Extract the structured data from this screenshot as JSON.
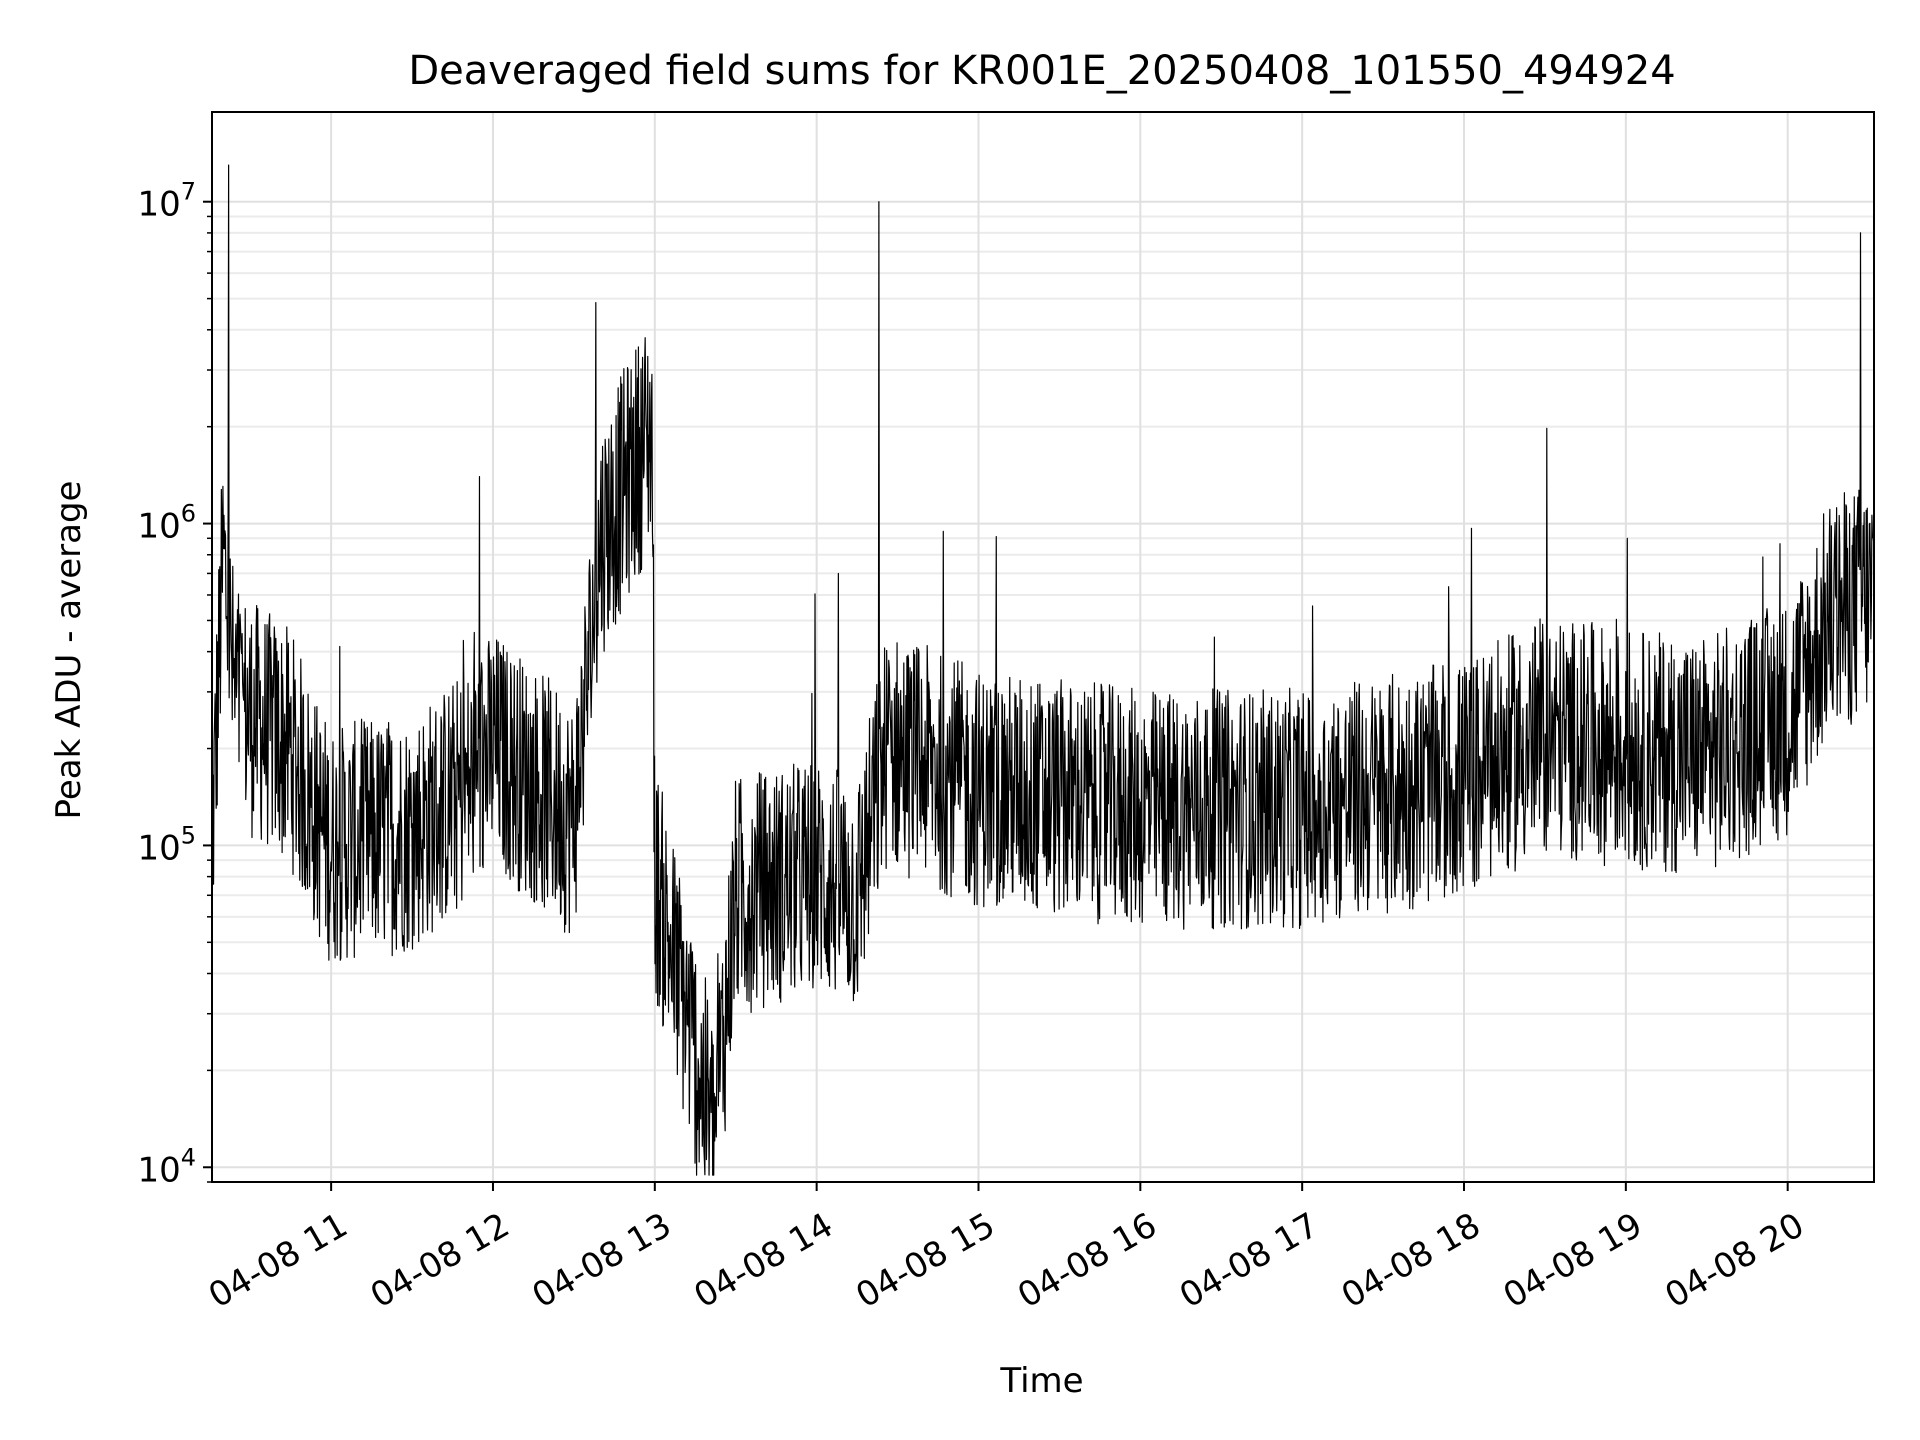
{
  "chart_data": {
    "type": "line",
    "title": "Deaveraged field sums for KR001E_20250408_101550_494924",
    "xlabel": "Time",
    "ylabel": "Peak ADU - average",
    "yscale": "log",
    "ylim": [
      9000,
      19000000
    ],
    "xlim": [
      "2025-04-08T10:15:50",
      "2025-04-08T20:32:00"
    ],
    "grid": true,
    "line_color": "#000000",
    "y_ticks": [
      {
        "value": 10000,
        "base": "10",
        "exp": "4"
      },
      {
        "value": 100000,
        "base": "10",
        "exp": "5"
      },
      {
        "value": 1000000,
        "base": "10",
        "exp": "6"
      },
      {
        "value": 10000000,
        "base": "10",
        "exp": "7"
      }
    ],
    "x_ticks": [
      {
        "value": "2025-04-08T11:00:00",
        "label": "04-08 11"
      },
      {
        "value": "2025-04-08T12:00:00",
        "label": "04-08 12"
      },
      {
        "value": "2025-04-08T13:00:00",
        "label": "04-08 13"
      },
      {
        "value": "2025-04-08T14:00:00",
        "label": "04-08 14"
      },
      {
        "value": "2025-04-08T15:00:00",
        "label": "04-08 15"
      },
      {
        "value": "2025-04-08T16:00:00",
        "label": "04-08 16"
      },
      {
        "value": "2025-04-08T17:00:00",
        "label": "04-08 17"
      },
      {
        "value": "2025-04-08T18:00:00",
        "label": "04-08 18"
      },
      {
        "value": "2025-04-08T19:00:00",
        "label": "04-08 19"
      },
      {
        "value": "2025-04-08T20:00:00",
        "label": "04-08 20"
      }
    ],
    "series": [
      {
        "sampling": "approximate envelope read from the plotted trace",
        "points": [
          {
            "x": "2025-04-08T10:15:50",
            "y": 100000
          },
          {
            "x": "2025-04-08T10:20:00",
            "y": 800000
          },
          {
            "x": "2025-04-08T10:22:00",
            "y": 13000000
          },
          {
            "x": "2025-04-08T10:24:00",
            "y": 300000
          },
          {
            "x": "2025-04-08T10:30:00",
            "y": 250000
          },
          {
            "x": "2025-04-08T10:45:00",
            "y": 200000
          },
          {
            "x": "2025-04-08T10:55:00",
            "y": 120000
          },
          {
            "x": "2025-04-08T11:00:00",
            "y": 100000
          },
          {
            "x": "2025-04-08T11:30:00",
            "y": 110000
          },
          {
            "x": "2025-04-08T11:50:00",
            "y": 150000
          },
          {
            "x": "2025-04-08T11:55:00",
            "y": 1400000
          },
          {
            "x": "2025-04-08T12:00:00",
            "y": 200000
          },
          {
            "x": "2025-04-08T12:30:00",
            "y": 120000
          },
          {
            "x": "2025-04-08T12:40:00",
            "y": 900000
          },
          {
            "x": "2025-04-08T12:59:00",
            "y": 2000000
          },
          {
            "x": "2025-04-08T13:00:00",
            "y": 80000
          },
          {
            "x": "2025-04-08T13:22:00",
            "y": 12500
          },
          {
            "x": "2025-04-08T13:30:00",
            "y": 70000
          },
          {
            "x": "2025-04-08T14:00:00",
            "y": 80000
          },
          {
            "x": "2025-04-08T14:08:00",
            "y": 700000
          },
          {
            "x": "2025-04-08T14:15:00",
            "y": 70000
          },
          {
            "x": "2025-04-08T14:23:00",
            "y": 10000000
          },
          {
            "x": "2025-04-08T14:26:00",
            "y": 200000
          },
          {
            "x": "2025-04-08T15:00:00",
            "y": 150000
          },
          {
            "x": "2025-04-08T16:00:00",
            "y": 130000
          },
          {
            "x": "2025-04-08T17:00:00",
            "y": 130000
          },
          {
            "x": "2025-04-08T18:00:00",
            "y": 160000
          },
          {
            "x": "2025-04-08T18:30:00",
            "y": 220000
          },
          {
            "x": "2025-04-08T19:00:00",
            "y": 200000
          },
          {
            "x": "2025-04-08T19:30:00",
            "y": 190000
          },
          {
            "x": "2025-04-08T20:00:00",
            "y": 250000
          },
          {
            "x": "2025-04-08T20:15:00",
            "y": 500000
          },
          {
            "x": "2025-04-08T20:27:00",
            "y": 8000000
          },
          {
            "x": "2025-04-08T20:32:00",
            "y": 600000
          }
        ]
      }
    ]
  }
}
